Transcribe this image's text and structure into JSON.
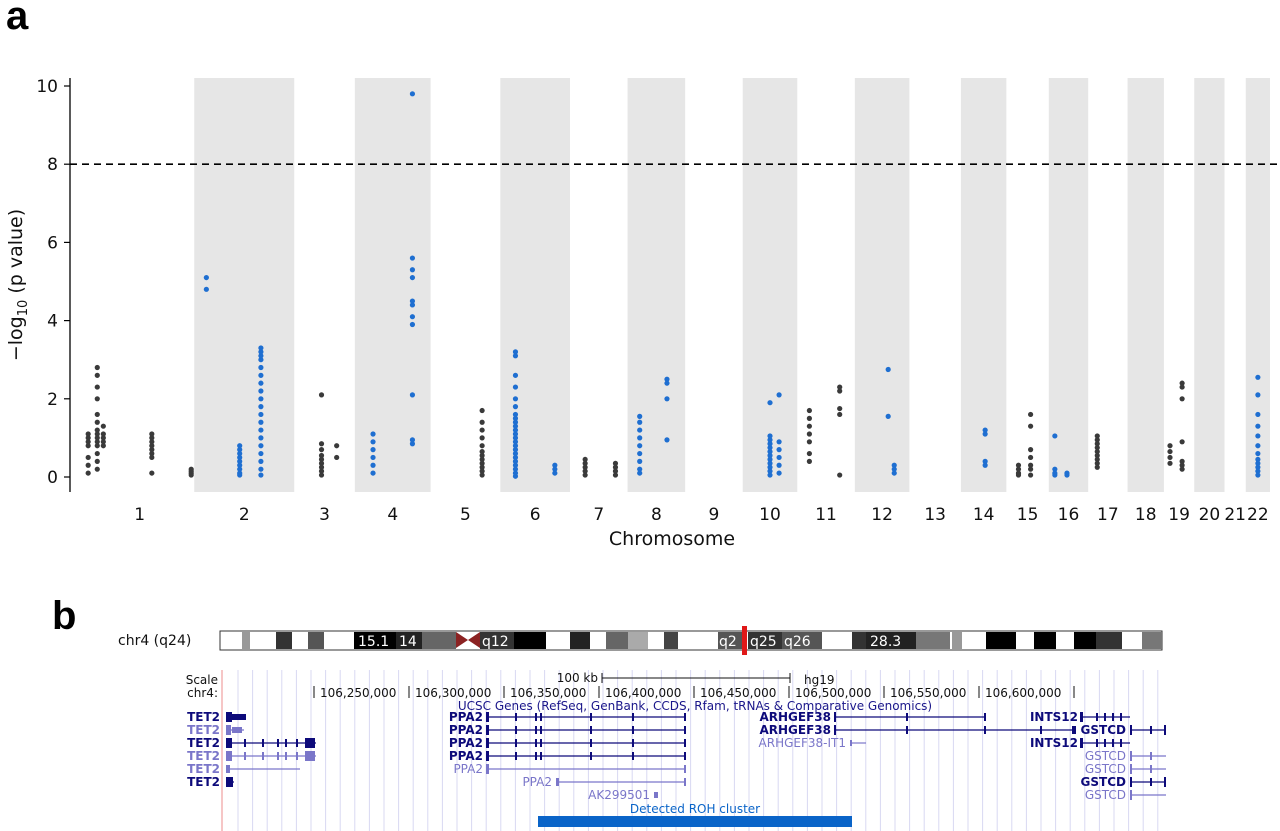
{
  "panel_a": {
    "letter": "a",
    "chart_data": {
      "type": "scatter",
      "title": "",
      "xlabel": "Chromosome",
      "ylabel": "−log10 (p value)",
      "ylim": [
        0,
        10
      ],
      "yticks": [
        0,
        2,
        4,
        6,
        8,
        10
      ],
      "threshold": 8,
      "grid": false,
      "shaded_bands": [
        "2",
        "4",
        "6",
        "8",
        "10",
        "12",
        "14",
        "16",
        "18",
        "20",
        "22"
      ],
      "chromosomes": [
        {
          "label": "1",
          "min": 0.5,
          "max": 4.1,
          "color": "#3a3a3a",
          "groups": [
            {
              "x": 0.6,
              "y": [
                0.1,
                0.3,
                0.5,
                0.8,
                0.9,
                1.0,
                1.1
              ]
            },
            {
              "x": 0.9,
              "y": [
                0.2,
                0.4,
                0.6,
                0.8,
                0.9,
                1.0,
                1.1,
                1.2,
                1.4,
                1.6,
                2.0,
                2.3,
                2.6,
                2.8
              ]
            },
            {
              "x": 1.1,
              "y": [
                0.8,
                0.9,
                1.0,
                1.1,
                1.3
              ]
            },
            {
              "x": 2.7,
              "y": [
                0.1,
                0.5,
                0.6,
                0.7,
                0.8,
                0.9,
                1.0,
                1.1
              ]
            },
            {
              "x": 4.0,
              "y": [
                0.05,
                0.1,
                0.15,
                0.2
              ]
            }
          ]
        },
        {
          "label": "2",
          "min": 4.1,
          "max": 7.4,
          "color": "#1f6fd1",
          "groups": [
            {
              "x": 4.5,
              "y": [
                4.8,
                5.1
              ]
            },
            {
              "x": 5.6,
              "y": [
                0.05,
                0.1,
                0.2,
                0.3,
                0.4,
                0.5,
                0.6,
                0.7,
                0.8
              ]
            },
            {
              "x": 6.3,
              "y": [
                0.05,
                0.2,
                0.4,
                0.6,
                0.8,
                1.0,
                1.2,
                1.4,
                1.6,
                1.8,
                2.0,
                2.2,
                2.4,
                2.6,
                2.8,
                3.0,
                3.1,
                3.2,
                3.3
              ]
            }
          ]
        },
        {
          "label": "3",
          "min": 7.4,
          "max": 9.4,
          "color": "#3a3a3a",
          "groups": [
            {
              "x": 8.3,
              "y": [
                0.05,
                0.15,
                0.25,
                0.35,
                0.45,
                0.55,
                0.7,
                0.85,
                2.1
              ]
            },
            {
              "x": 8.8,
              "y": [
                0.5,
                0.8
              ]
            }
          ]
        },
        {
          "label": "4",
          "min": 9.4,
          "max": 11.9,
          "color": "#1f6fd1",
          "groups": [
            {
              "x": 10.0,
              "y": [
                0.1,
                0.3,
                0.5,
                0.7,
                0.9,
                1.1
              ]
            },
            {
              "x": 11.3,
              "y": [
                0.85,
                0.95,
                2.1,
                3.9,
                4.1,
                4.4,
                4.5,
                5.1,
                5.3,
                5.6,
                9.8
              ]
            }
          ]
        },
        {
          "label": "5",
          "min": 11.9,
          "max": 14.2,
          "color": "#3a3a3a",
          "groups": [
            {
              "x": 13.6,
              "y": [
                0.05,
                0.15,
                0.25,
                0.35,
                0.45,
                0.55,
                0.65,
                0.8,
                1.0,
                1.2,
                1.4,
                1.7
              ]
            }
          ]
        },
        {
          "label": "6",
          "min": 14.2,
          "max": 16.5,
          "color": "#1f6fd1",
          "groups": [
            {
              "x": 14.7,
              "y": [
                0.02,
                0.1,
                0.2,
                0.3,
                0.4,
                0.5,
                0.6,
                0.7,
                0.8,
                0.9,
                1.0,
                1.1,
                1.2,
                1.3,
                1.4,
                1.5,
                1.6,
                1.8,
                2.0,
                2.3,
                2.6,
                3.1,
                3.2
              ]
            },
            {
              "x": 16.0,
              "y": [
                0.1,
                0.2,
                0.3
              ]
            }
          ]
        },
        {
          "label": "7",
          "min": 16.5,
          "max": 18.4,
          "color": "#3a3a3a",
          "groups": [
            {
              "x": 17.0,
              "y": [
                0.05,
                0.15,
                0.25,
                0.35,
                0.45
              ]
            },
            {
              "x": 18.0,
              "y": [
                0.05,
                0.15,
                0.25,
                0.35
              ]
            }
          ]
        },
        {
          "label": "8",
          "min": 18.4,
          "max": 20.3,
          "color": "#1f6fd1",
          "groups": [
            {
              "x": 18.8,
              "y": [
                0.1,
                0.2,
                0.4,
                0.6,
                0.8,
                1.0,
                1.2,
                1.4,
                1.55
              ]
            },
            {
              "x": 19.7,
              "y": [
                0.95,
                2.0,
                2.4,
                2.5
              ]
            }
          ]
        },
        {
          "label": "9",
          "min": 20.3,
          "max": 22.2,
          "color": "#3a3a3a",
          "groups": []
        },
        {
          "label": "10",
          "min": 22.2,
          "max": 24.0,
          "color": "#1f6fd1",
          "groups": [
            {
              "x": 23.1,
              "y": [
                0.05,
                0.15,
                0.25,
                0.35,
                0.45,
                0.55,
                0.65,
                0.75,
                0.85,
                0.95,
                1.05,
                1.9
              ]
            },
            {
              "x": 23.4,
              "y": [
                0.1,
                0.3,
                0.5,
                0.7,
                0.9,
                2.1
              ]
            }
          ]
        },
        {
          "label": "11",
          "min": 24.0,
          "max": 25.9,
          "color": "#3a3a3a",
          "groups": [
            {
              "x": 24.4,
              "y": [
                0.4,
                0.6,
                0.9,
                1.1,
                1.3,
                1.5,
                1.7
              ]
            },
            {
              "x": 25.4,
              "y": [
                0.05,
                1.6,
                1.75,
                2.2,
                2.3
              ]
            }
          ]
        },
        {
          "label": "12",
          "min": 25.9,
          "max": 27.7,
          "color": "#1f6fd1",
          "groups": [
            {
              "x": 27.0,
              "y": [
                1.55,
                2.75
              ]
            },
            {
              "x": 27.2,
              "y": [
                0.1,
                0.2,
                0.3
              ]
            }
          ]
        },
        {
          "label": "13",
          "min": 27.7,
          "max": 29.4,
          "color": "#3a3a3a",
          "groups": []
        },
        {
          "label": "14",
          "min": 29.4,
          "max": 30.9,
          "color": "#1f6fd1",
          "groups": [
            {
              "x": 30.2,
              "y": [
                0.3,
                0.4,
                1.1,
                1.2
              ]
            }
          ]
        },
        {
          "label": "15",
          "min": 30.9,
          "max": 32.3,
          "color": "#3a3a3a",
          "groups": [
            {
              "x": 31.3,
              "y": [
                0.05,
                0.1,
                0.2,
                0.3
              ]
            },
            {
              "x": 31.7,
              "y": [
                0.05,
                0.2,
                0.3,
                0.5,
                0.7,
                1.3,
                1.6
              ]
            }
          ]
        },
        {
          "label": "16",
          "min": 32.3,
          "max": 33.6,
          "color": "#1f6fd1",
          "groups": [
            {
              "x": 32.5,
              "y": [
                0.05,
                0.1,
                0.2,
                1.05
              ]
            },
            {
              "x": 32.9,
              "y": [
                0.05,
                0.1
              ]
            }
          ]
        },
        {
          "label": "17",
          "min": 33.6,
          "max": 34.9,
          "color": "#3a3a3a",
          "groups": [
            {
              "x": 33.9,
              "y": [
                0.25,
                0.35,
                0.45,
                0.55,
                0.65,
                0.75,
                0.85,
                0.95,
                1.05
              ]
            }
          ]
        },
        {
          "label": "18",
          "min": 34.9,
          "max": 36.1,
          "color": "#1f6fd1",
          "groups": []
        },
        {
          "label": "19",
          "min": 36.1,
          "max": 37.1,
          "color": "#3a3a3a",
          "groups": [
            {
              "x": 36.3,
              "y": [
                0.35,
                0.5,
                0.65,
                0.8
              ]
            },
            {
              "x": 36.7,
              "y": [
                0.2,
                0.3,
                0.4,
                0.9,
                2.0,
                2.3,
                2.4
              ]
            }
          ]
        },
        {
          "label": "20",
          "min": 37.1,
          "max": 38.1,
          "color": "#1f6fd1",
          "groups": []
        },
        {
          "label": "21",
          "min": 38.1,
          "max": 38.8,
          "color": "#3a3a3a",
          "groups": []
        },
        {
          "label": "22",
          "min": 38.8,
          "max": 39.6,
          "color": "#1f6fd1",
          "groups": [
            {
              "x": 39.2,
              "y": [
                0.05,
                0.15,
                0.25,
                0.35,
                0.45,
                0.6,
                0.8,
                1.05,
                1.3,
                1.6,
                2.1,
                2.55
              ]
            }
          ]
        }
      ]
    }
  },
  "panel_b": {
    "letter": "b",
    "ideogram": {
      "label": "chr4 (q24)",
      "bands": [
        "15.1",
        "14",
        "q12",
        "q2",
        "q25",
        "q26",
        "28.3"
      ]
    },
    "browser": {
      "scale_label": "Scale",
      "chr_label": "chr4:",
      "scale_bar": "100 kb",
      "assembly": "hg19",
      "positions": [
        "106,250,000",
        "106,300,000",
        "106,350,000",
        "106,400,000",
        "106,450,000",
        "106,500,000",
        "106,550,000",
        "106,600,000"
      ],
      "track_title": "UCSC Genes (RefSeq, GenBank, CCDS, Rfam, tRNAs & Comparative Genomics)",
      "genes_left": [
        "TET2",
        "TET2",
        "TET2",
        "TET2",
        "TET2",
        "TET2"
      ],
      "genes_ppa2": [
        "PPA2",
        "PPA2",
        "PPA2",
        "PPA2",
        "PPA2"
      ],
      "gene_ppa2_extra": "PPA2",
      "gene_ak": "AK299501",
      "genes_arhgef": [
        "ARHGEF38",
        "ARHGEF38",
        "ARHGEF38-IT1"
      ],
      "genes_ints": [
        "INTS12",
        "INTS12"
      ],
      "genes_gstcd": [
        "GSTCD",
        "GSTCD",
        "GSTCD",
        "GSTCD",
        "GSTCD"
      ],
      "roh_label": "Detected ROH cluster",
      "colors": {
        "dark": "#0d0a7a",
        "light": "#7a76c9",
        "roh": "#0a64c8"
      }
    }
  }
}
